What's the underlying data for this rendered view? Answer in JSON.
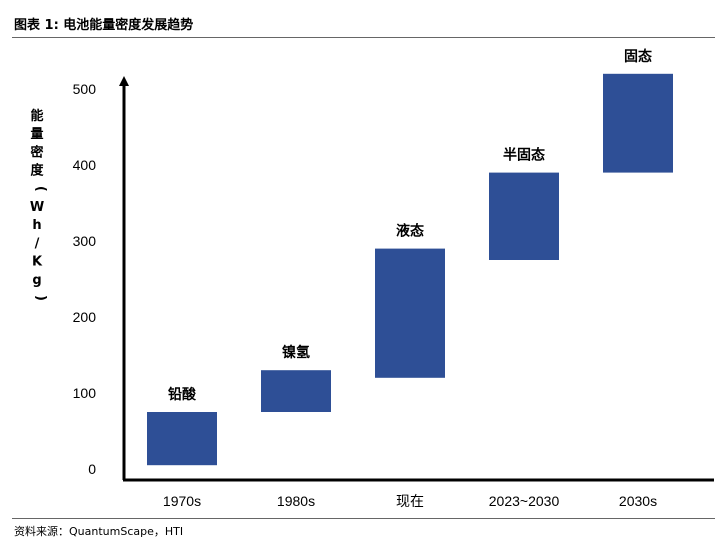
{
  "header": {
    "title": "图表 1: 电池能量密度发展趋势"
  },
  "footer": {
    "source": "资料来源：QuantumScape，HTI"
  },
  "colors": {
    "bar": "#2E4F96",
    "axis": "#000000"
  },
  "chart_data": {
    "type": "bar",
    "subtype": "floating-range",
    "ylabel_chars": [
      "能",
      "量",
      "密",
      "度",
      "(",
      "W",
      "h",
      "/",
      "K",
      "g",
      ")"
    ],
    "yticks": [
      0,
      100,
      200,
      300,
      400,
      500
    ],
    "ylim": [
      0,
      520
    ],
    "grid": false,
    "categories": [
      "1970s",
      "1980s",
      "现在",
      "2023~2030",
      "2030s"
    ],
    "bar_labels": [
      "铅酸",
      "镍氢",
      "液态",
      "半固态",
      "固态"
    ],
    "ranges": [
      [
        5,
        75
      ],
      [
        75,
        130
      ],
      [
        120,
        290
      ],
      [
        275,
        390
      ],
      [
        390,
        520
      ]
    ]
  }
}
